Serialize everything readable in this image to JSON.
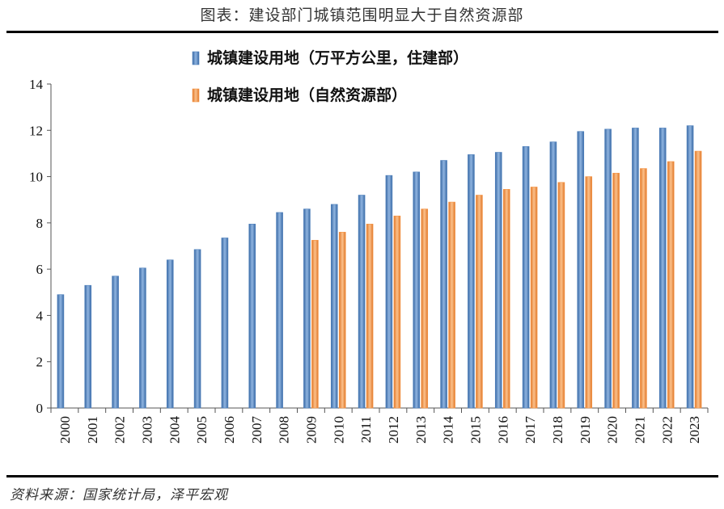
{
  "header": {
    "title": "图表：建设部门城镇范围明显大于自然资源部"
  },
  "footer": {
    "source": "资料来源：国家统计局，泽平宏观"
  },
  "colors": {
    "series1": "#4f81bd",
    "series2": "#f79646",
    "axis": "#7f7f7f"
  },
  "chart_data": {
    "type": "bar",
    "categories": [
      "2000",
      "2001",
      "2002",
      "2003",
      "2004",
      "2005",
      "2006",
      "2007",
      "2008",
      "2009",
      "2010",
      "2011",
      "2012",
      "2013",
      "2014",
      "2015",
      "2016",
      "2017",
      "2018",
      "2019",
      "2020",
      "2021",
      "2022",
      "2023"
    ],
    "series": [
      {
        "name": "城镇建设用地（万平方公里，住建部）",
        "values": [
          4.9,
          5.3,
          5.7,
          6.05,
          6.4,
          6.85,
          7.35,
          7.95,
          8.45,
          8.6,
          8.8,
          9.2,
          10.05,
          10.2,
          10.7,
          10.95,
          11.05,
          11.3,
          11.5,
          11.95,
          12.05,
          12.1,
          12.1,
          12.2
        ]
      },
      {
        "name": "城镇建设用地（自然资源部）",
        "values": [
          null,
          null,
          null,
          null,
          null,
          null,
          null,
          null,
          null,
          7.25,
          7.6,
          7.95,
          8.3,
          8.6,
          8.9,
          9.2,
          9.45,
          9.55,
          9.75,
          10.0,
          10.15,
          10.35,
          10.65,
          11.1
        ]
      }
    ],
    "ylim": [
      0,
      14
    ],
    "yticks": [
      0,
      2,
      4,
      6,
      8,
      10,
      12,
      14
    ],
    "legend_position": "top-left",
    "grid": false
  }
}
